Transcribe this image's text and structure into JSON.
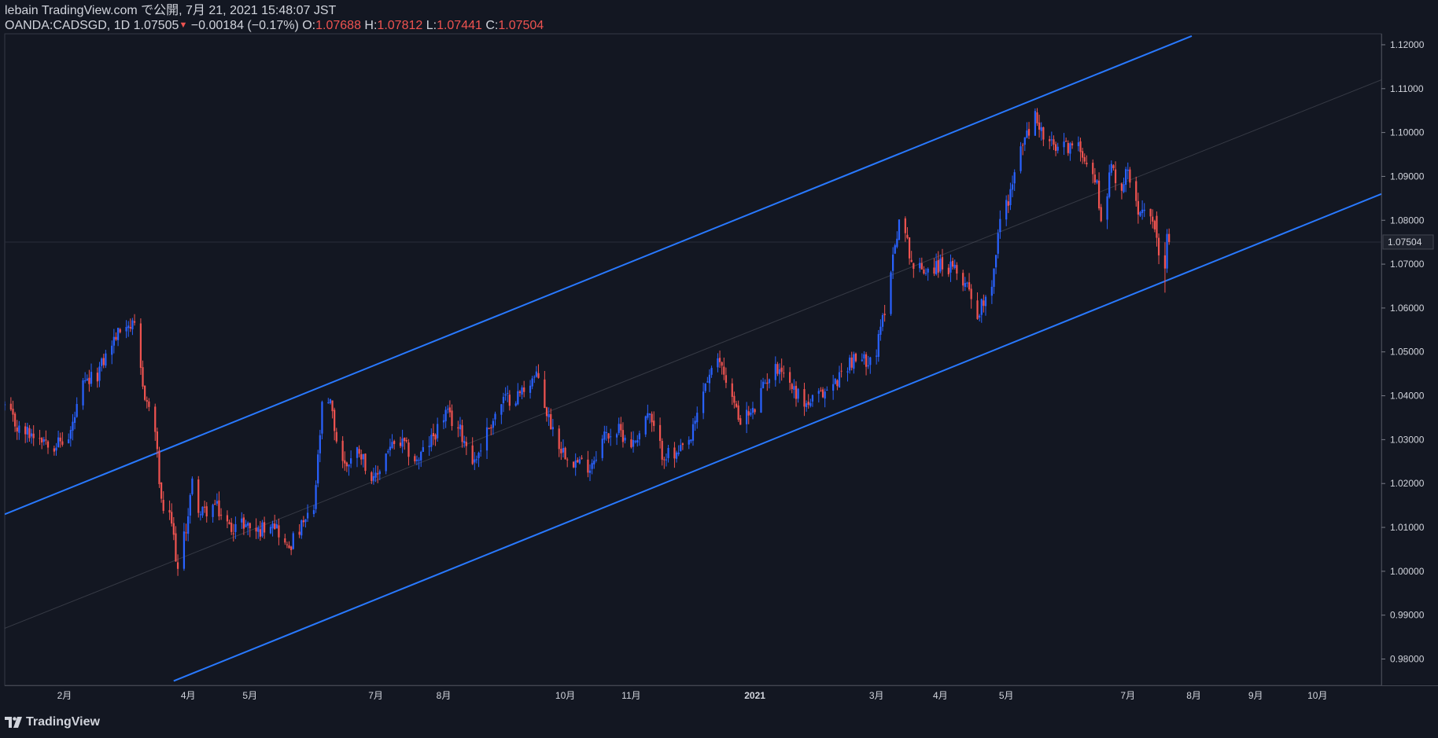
{
  "header": {
    "line1": "lebain TradingView.com で公開, 7月 21, 2021 15:48:07 JST",
    "symbol": "OANDA:CADSGD, 1D",
    "last": "1.07505",
    "change": "−0.00184 (−0.17%)",
    "o_label": "O:",
    "o_value": "1.07688",
    "h_label": "H:",
    "h_value": "1.07812",
    "l_label": "L:",
    "l_value": "1.07441",
    "c_label": "C:",
    "c_value": "1.07504"
  },
  "footer": {
    "brand": "TradingView"
  },
  "colors": {
    "background": "#131722",
    "up": "#2962ff",
    "down": "#ef5350",
    "channel": "#2979ff",
    "text": "#d1d4dc"
  },
  "chart_data": {
    "type": "candlestick",
    "symbol": "OANDA:CADSGD",
    "interval": "1D",
    "ylim": [
      0.974,
      1.1225
    ],
    "y_ticks": [
      0.98,
      0.99,
      1.0,
      1.01,
      1.02,
      1.03,
      1.04,
      1.05,
      1.06,
      1.07,
      1.08,
      1.09,
      1.1,
      1.11,
      1.12
    ],
    "y_tick_labels": [
      "0.98000",
      "0.99000",
      "1.00000",
      "1.01000",
      "1.02000",
      "1.03000",
      "1.04000",
      "1.05000",
      "1.06000",
      "1.07000",
      "1.08000",
      "1.09000",
      "1.10000",
      "1.11000",
      "1.12000"
    ],
    "last_price": 1.07504,
    "last_price_label": "1.07504",
    "xlim": [
      "2020-01-03",
      "2021-11-01"
    ],
    "x_ticks": [
      {
        "date": "2020-02-01",
        "label": "2月"
      },
      {
        "date": "2020-04-01",
        "label": "4月"
      },
      {
        "date": "2020-05-01",
        "label": "5月"
      },
      {
        "date": "2020-07-01",
        "label": "7月"
      },
      {
        "date": "2020-08-03",
        "label": "8月"
      },
      {
        "date": "2020-10-01",
        "label": "10月"
      },
      {
        "date": "2020-11-02",
        "label": "11月"
      },
      {
        "date": "2021-01-01",
        "label": "2021",
        "bold": true
      },
      {
        "date": "2021-03-01",
        "label": "3月"
      },
      {
        "date": "2021-04-01",
        "label": "4月"
      },
      {
        "date": "2021-05-03",
        "label": "5月"
      },
      {
        "date": "2021-07-01",
        "label": "7月"
      },
      {
        "date": "2021-08-02",
        "label": "8月"
      },
      {
        "date": "2021-09-01",
        "label": "9月"
      },
      {
        "date": "2021-10-01",
        "label": "10月"
      }
    ],
    "close_path": [
      [
        "2020-01-03",
        1.0375
      ],
      [
        "2020-01-10",
        1.032
      ],
      [
        "2020-01-20",
        1.031
      ],
      [
        "2020-01-27",
        1.029
      ],
      [
        "2020-02-03",
        1.03
      ],
      [
        "2020-02-10",
        1.042
      ],
      [
        "2020-02-17",
        1.045
      ],
      [
        "2020-02-24",
        1.052
      ],
      [
        "2020-03-02",
        1.057
      ],
      [
        "2020-03-06",
        1.055
      ],
      [
        "2020-03-10",
        1.042
      ],
      [
        "2020-03-16",
        1.032
      ],
      [
        "2020-03-19",
        1.015
      ],
      [
        "2020-03-24",
        1.011
      ],
      [
        "2020-03-27",
        1.0
      ],
      [
        "2020-03-31",
        1.01
      ],
      [
        "2020-04-03",
        1.02
      ],
      [
        "2020-04-07",
        1.013
      ],
      [
        "2020-04-14",
        1.015
      ],
      [
        "2020-04-21",
        1.01
      ],
      [
        "2020-04-28",
        1.011
      ],
      [
        "2020-05-05",
        1.009
      ],
      [
        "2020-05-12",
        1.012
      ],
      [
        "2020-05-19",
        1.005
      ],
      [
        "2020-05-26",
        1.01
      ],
      [
        "2020-06-01",
        1.014
      ],
      [
        "2020-06-05",
        1.037
      ],
      [
        "2020-06-09",
        1.038
      ],
      [
        "2020-06-12",
        1.03
      ],
      [
        "2020-06-16",
        1.024
      ],
      [
        "2020-06-23",
        1.028
      ],
      [
        "2020-06-30",
        1.02
      ],
      [
        "2020-07-07",
        1.028
      ],
      [
        "2020-07-14",
        1.029
      ],
      [
        "2020-07-21",
        1.025
      ],
      [
        "2020-07-28",
        1.03
      ],
      [
        "2020-08-04",
        1.036
      ],
      [
        "2020-08-11",
        1.032
      ],
      [
        "2020-08-18",
        1.025
      ],
      [
        "2020-08-25",
        1.033
      ],
      [
        "2020-09-01",
        1.039
      ],
      [
        "2020-09-08",
        1.04
      ],
      [
        "2020-09-15",
        1.044
      ],
      [
        "2020-09-18",
        1.044
      ],
      [
        "2020-09-22",
        1.036
      ],
      [
        "2020-09-29",
        1.028
      ],
      [
        "2020-10-06",
        1.025
      ],
      [
        "2020-10-13",
        1.024
      ],
      [
        "2020-10-20",
        1.031
      ],
      [
        "2020-10-27",
        1.032
      ],
      [
        "2020-11-03",
        1.029
      ],
      [
        "2020-11-10",
        1.036
      ],
      [
        "2020-11-17",
        1.027
      ],
      [
        "2020-11-24",
        1.026
      ],
      [
        "2020-12-01",
        1.03
      ],
      [
        "2020-12-08",
        1.043
      ],
      [
        "2020-12-15",
        1.048
      ],
      [
        "2020-12-18",
        1.044
      ],
      [
        "2020-12-24",
        1.035
      ],
      [
        "2020-12-31",
        1.036
      ],
      [
        "2021-01-07",
        1.044
      ],
      [
        "2021-01-13",
        1.047
      ],
      [
        "2021-01-19",
        1.042
      ],
      [
        "2021-01-26",
        1.038
      ],
      [
        "2021-02-02",
        1.04
      ],
      [
        "2021-02-09",
        1.043
      ],
      [
        "2021-02-16",
        1.048
      ],
      [
        "2021-02-23",
        1.048
      ],
      [
        "2021-03-01",
        1.05
      ],
      [
        "2021-03-05",
        1.06
      ],
      [
        "2021-03-09",
        1.072
      ],
      [
        "2021-03-12",
        1.08
      ],
      [
        "2021-03-16",
        1.075
      ],
      [
        "2021-03-19",
        1.069
      ],
      [
        "2021-03-26",
        1.069
      ],
      [
        "2021-04-02",
        1.07
      ],
      [
        "2021-04-09",
        1.068
      ],
      [
        "2021-04-15",
        1.065
      ],
      [
        "2021-04-19",
        1.058
      ],
      [
        "2021-04-22",
        1.062
      ],
      [
        "2021-04-26",
        1.066
      ],
      [
        "2021-04-30",
        1.08
      ],
      [
        "2021-05-04",
        1.085
      ],
      [
        "2021-05-07",
        1.09
      ],
      [
        "2021-05-11",
        1.098
      ],
      [
        "2021-05-14",
        1.1
      ],
      [
        "2021-05-17",
        1.104
      ],
      [
        "2021-05-21",
        1.099
      ],
      [
        "2021-05-27",
        1.096
      ],
      [
        "2021-06-02",
        1.097
      ],
      [
        "2021-06-09",
        1.096
      ],
      [
        "2021-06-16",
        1.088
      ],
      [
        "2021-06-18",
        1.08
      ],
      [
        "2021-06-23",
        1.092
      ],
      [
        "2021-06-28",
        1.087
      ],
      [
        "2021-07-01",
        1.092
      ],
      [
        "2021-07-06",
        1.083
      ],
      [
        "2021-07-09",
        1.084
      ],
      [
        "2021-07-13",
        1.078
      ],
      [
        "2021-07-16",
        1.073
      ],
      [
        "2021-07-19",
        1.069
      ],
      [
        "2021-07-21",
        1.075
      ]
    ],
    "ohlc_recent": [
      [
        "2021-07-15",
        1.081,
        1.082,
        1.074,
        1.076
      ],
      [
        "2021-07-16",
        1.076,
        1.077,
        1.07,
        1.072
      ],
      [
        "2021-07-19",
        1.072,
        1.075,
        1.0635,
        1.069
      ],
      [
        "2021-07-20",
        1.069,
        1.078,
        1.068,
        1.07688
      ],
      [
        "2021-07-21",
        1.07688,
        1.07812,
        1.07441,
        1.07504
      ]
    ],
    "channel": {
      "upper": [
        [
          "2020-01-03",
          1.013
        ],
        [
          "2021-08-01",
          1.122
        ]
      ],
      "lower": [
        [
          "2020-03-25",
          0.975
        ],
        [
          "2021-11-01",
          1.086
        ]
      ],
      "middle": [
        [
          "2020-01-03",
          0.987
        ],
        [
          "2021-11-01",
          1.112
        ]
      ]
    }
  }
}
